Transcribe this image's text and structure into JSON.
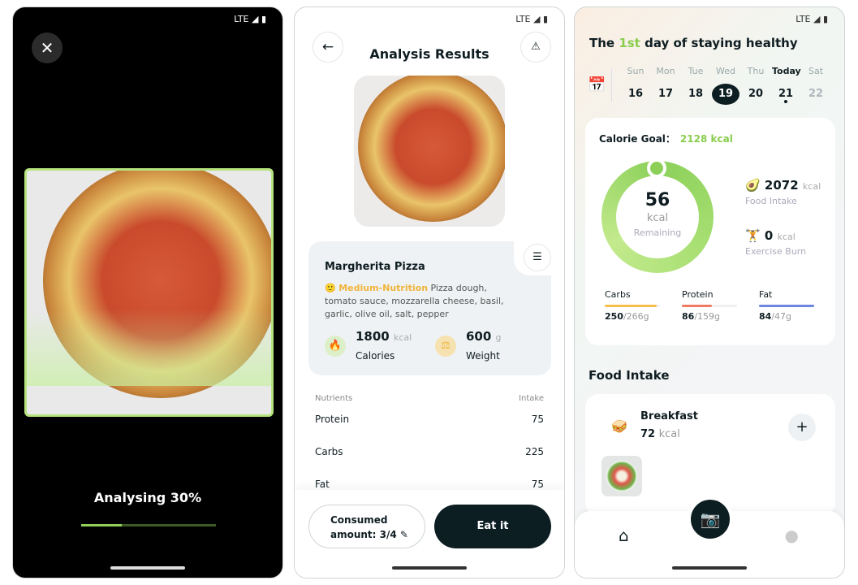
{
  "status": {
    "network": "LTE ◢ ▮"
  },
  "scan": {
    "close_icon": "close-icon",
    "progress_text": "Analysing 30%",
    "progress": 30
  },
  "analysis": {
    "title": "Analysis Results",
    "food_name": "Margherita Pizza",
    "rating_emoji": "🙂",
    "rating": "Medium-Nutrition",
    "ingredients": "Pizza dough, tomato sauce, mozzarella cheese, basil, garlic, olive oil, salt, pepper",
    "calories": {
      "value": "1800",
      "unit": "kcal",
      "label": "Calories"
    },
    "weight": {
      "value": "600",
      "unit": "g",
      "label": "Weight"
    },
    "nutrients_header": "Nutrients",
    "intake_header": "Intake",
    "nutrients": [
      {
        "name": "Protein",
        "value": "75"
      },
      {
        "name": "Carbs",
        "value": "225"
      },
      {
        "name": "Fat",
        "value": "75"
      }
    ],
    "consumed_label": "Consumed",
    "consumed_amount": "amount: 3/4 ✎",
    "eat_label": "Eat it"
  },
  "home": {
    "headline_pre": "The ",
    "headline_hl": "1st",
    "headline_post": " day of staying healthy",
    "days": [
      {
        "name": "Sun",
        "num": "16"
      },
      {
        "name": "Mon",
        "num": "17"
      },
      {
        "name": "Tue",
        "num": "18"
      },
      {
        "name": "Wed",
        "num": "19",
        "selected": true
      },
      {
        "name": "Thu",
        "num": "20"
      },
      {
        "name": "Today",
        "num": "21"
      },
      {
        "name": "Sat",
        "num": "22"
      }
    ],
    "goal_label": "Calorie Goal：",
    "goal_value": "2128 kcal",
    "remaining": "56",
    "remaining_unit": "kcal",
    "remaining_label": "Remaining",
    "intake": {
      "value": "2072",
      "unit": "kcal",
      "label": "Food Intake",
      "emoji": "🥑"
    },
    "burn": {
      "value": "0",
      "unit": "kcal",
      "label": "Exercise Burn",
      "emoji": "🏋"
    },
    "macros": [
      {
        "name": "Carbs",
        "value": "250",
        "total": "/266g",
        "fill": 94,
        "color": "#f5c04a"
      },
      {
        "name": "Protein",
        "value": "86",
        "total": "/159g",
        "fill": 54,
        "color": "#ef7b63"
      },
      {
        "name": "Fat",
        "value": "84",
        "total": "/47g",
        "fill": 100,
        "color": "#6f86e0"
      }
    ],
    "food_intake_title": "Food Intake",
    "meal": {
      "name": "Breakfast",
      "emoji": "🥪",
      "kcal": "72",
      "unit": "kcal"
    }
  },
  "colors": {
    "accent": "#8acd4f",
    "dark": "#0d1e23"
  }
}
